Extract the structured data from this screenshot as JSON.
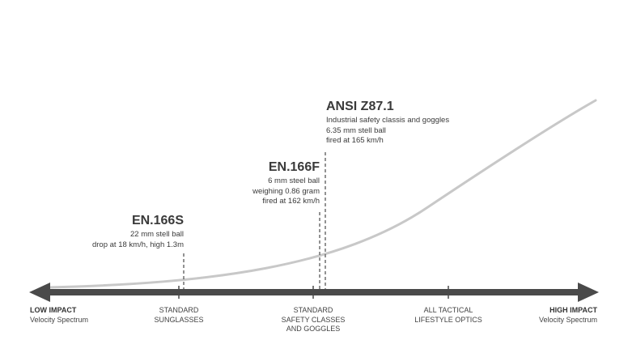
{
  "axis": {
    "low": {
      "title": "LOW IMPACT",
      "subtitle": "Velocity Spectrum"
    },
    "high": {
      "title": "HIGH IMPACT",
      "subtitle": "Velocity Spectrum"
    },
    "categories": [
      {
        "lines": [
          "STANDARD",
          "SUNGLASSES"
        ]
      },
      {
        "lines": [
          "STANDARD",
          "SAFETY CLASSES",
          "AND GOGGLES"
        ]
      },
      {
        "lines": [
          "ALL TACTICAL",
          "LIFESTYLE OPTICS"
        ]
      }
    ]
  },
  "standards": [
    {
      "name": "EN.166S",
      "lines": [
        "22 mm stell ball",
        "drop at 18 km/h, high 1.3m"
      ]
    },
    {
      "name": "EN.166F",
      "lines": [
        "6 mm steel ball",
        "weighing 0.86 gram",
        "fired at 162 km/h"
      ]
    },
    {
      "name": "ANSI Z87.1",
      "lines": [
        "Industrial safety classis and goggles",
        "6.35 mm stell ball",
        "fired at 165 km/h"
      ]
    }
  ],
  "colors": {
    "axis": "#4a4a4a",
    "curve": "#c8c8c8",
    "text": "#3a3a3a"
  }
}
